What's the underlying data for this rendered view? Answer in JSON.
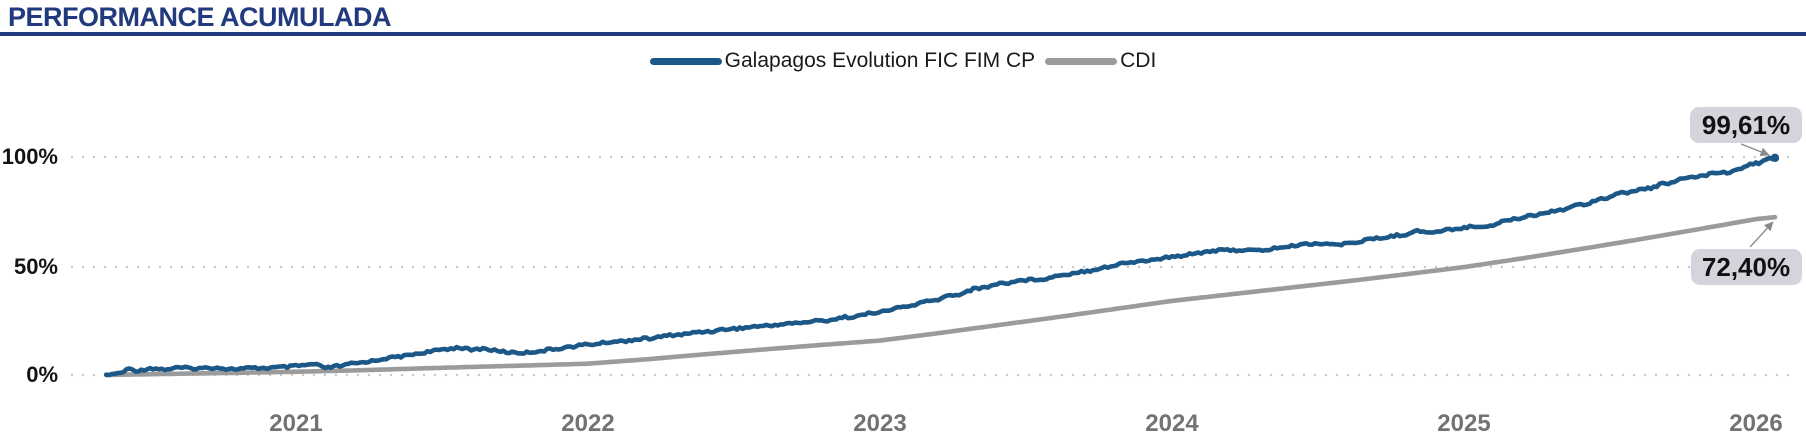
{
  "header": {
    "title": "PERFORMANCE ACUMULADA"
  },
  "colors": {
    "title_navy": "#21397d",
    "fund_blue": "#1b5787",
    "cdi_gray": "#9b9b9b",
    "grid_dot": "#c7c7c7",
    "y_label": "#141414",
    "year_label": "#737373",
    "callout_bg": "#d3d4dc",
    "callout_text": "#111111",
    "arrow_gray": "#8a8a8a"
  },
  "chart_data": {
    "type": "line",
    "title": "PERFORMANCE ACUMULADA",
    "xlabel": "",
    "ylabel": "",
    "legend_position": "top-center",
    "grid": "dotted-horizontal",
    "x_axis": {
      "tick_labels": [
        "2021",
        "2022",
        "2023",
        "2024",
        "2025",
        "2026"
      ],
      "tick_values": [
        2021,
        2022,
        2023,
        2024,
        2025,
        2026
      ],
      "range": [
        2020.3,
        2026.15
      ]
    },
    "y_axis": {
      "tick_labels": [
        "100%",
        "50%",
        "0%"
      ],
      "tick_values": [
        100,
        50,
        0
      ],
      "range": [
        0,
        105
      ],
      "unit": "%"
    },
    "series": [
      {
        "name": "Galapagos Evolution FIC FIM CP",
        "color": "#1b5787",
        "end_label": "99,61%",
        "end_value": 99.61,
        "points": [
          [
            2020.35,
            0
          ],
          [
            2020.4,
            1.0
          ],
          [
            2020.43,
            2.8
          ],
          [
            2020.46,
            1.9
          ],
          [
            2020.5,
            3.1
          ],
          [
            2020.55,
            2.6
          ],
          [
            2020.6,
            3.3
          ],
          [
            2020.66,
            3.0
          ],
          [
            2020.72,
            3.4
          ],
          [
            2020.78,
            2.7
          ],
          [
            2020.84,
            3.1
          ],
          [
            2020.9,
            3.2
          ],
          [
            2020.96,
            3.6
          ],
          [
            2021.02,
            4.3
          ],
          [
            2021.06,
            4.9
          ],
          [
            2021.1,
            3.3
          ],
          [
            2021.15,
            4.1
          ],
          [
            2021.2,
            5.3
          ],
          [
            2021.26,
            6.4
          ],
          [
            2021.31,
            7.7
          ],
          [
            2021.36,
            8.5
          ],
          [
            2021.41,
            9.7
          ],
          [
            2021.46,
            10.7
          ],
          [
            2021.51,
            11.9
          ],
          [
            2021.56,
            12.6
          ],
          [
            2021.6,
            11.5
          ],
          [
            2021.64,
            12.1
          ],
          [
            2021.69,
            11.1
          ],
          [
            2021.73,
            10.4
          ],
          [
            2021.78,
            10.2
          ],
          [
            2021.83,
            10.9
          ],
          [
            2021.88,
            11.8
          ],
          [
            2021.93,
            12.8
          ],
          [
            2022.0,
            14.0
          ],
          [
            2022.1,
            15.4
          ],
          [
            2022.2,
            16.7
          ],
          [
            2022.3,
            18.4
          ],
          [
            2022.4,
            19.9
          ],
          [
            2022.5,
            21.3
          ],
          [
            2022.6,
            22.5
          ],
          [
            2022.7,
            23.7
          ],
          [
            2022.8,
            24.9
          ],
          [
            2022.9,
            26.7
          ],
          [
            2023.0,
            28.9
          ],
          [
            2023.08,
            31.2
          ],
          [
            2023.17,
            33.8
          ],
          [
            2023.25,
            36.6
          ],
          [
            2023.34,
            39.8
          ],
          [
            2023.42,
            42.1
          ],
          [
            2023.5,
            43.6
          ],
          [
            2023.56,
            44.1
          ],
          [
            2023.63,
            46.1
          ],
          [
            2023.7,
            47.6
          ],
          [
            2023.78,
            49.6
          ],
          [
            2023.85,
            51.6
          ],
          [
            2023.92,
            52.6
          ],
          [
            2024.0,
            54.1
          ],
          [
            2024.08,
            55.9
          ],
          [
            2024.15,
            57.1
          ],
          [
            2024.22,
            57.3
          ],
          [
            2024.3,
            57.1
          ],
          [
            2024.38,
            58.6
          ],
          [
            2024.46,
            60.1
          ],
          [
            2024.52,
            60.4
          ],
          [
            2024.57,
            59.7
          ],
          [
            2024.63,
            61.1
          ],
          [
            2024.7,
            62.6
          ],
          [
            2024.78,
            64.1
          ],
          [
            2024.84,
            66.0
          ],
          [
            2024.9,
            65.5
          ],
          [
            2024.96,
            66.9
          ],
          [
            2025.02,
            67.9
          ],
          [
            2025.08,
            68.4
          ],
          [
            2025.16,
            71.3
          ],
          [
            2025.24,
            73.4
          ],
          [
            2025.32,
            75.6
          ],
          [
            2025.4,
            78.1
          ],
          [
            2025.48,
            81.2
          ],
          [
            2025.55,
            83.6
          ],
          [
            2025.62,
            85.4
          ],
          [
            2025.7,
            88.1
          ],
          [
            2025.76,
            90.1
          ],
          [
            2025.82,
            91.4
          ],
          [
            2025.86,
            93.1
          ],
          [
            2025.9,
            92.6
          ],
          [
            2025.95,
            95.1
          ],
          [
            2026.0,
            97.2
          ],
          [
            2026.065,
            99.61
          ]
        ]
      },
      {
        "name": "CDI",
        "color": "#9b9b9b",
        "end_label": "72,40%",
        "end_value": 72.4,
        "points": [
          [
            2020.35,
            0
          ],
          [
            2020.5,
            0.35
          ],
          [
            2020.65,
            0.7
          ],
          [
            2020.8,
            1.0
          ],
          [
            2021.0,
            1.5
          ],
          [
            2021.2,
            2.1
          ],
          [
            2021.4,
            2.9
          ],
          [
            2021.6,
            3.7
          ],
          [
            2021.8,
            4.4
          ],
          [
            2022.0,
            5.2
          ],
          [
            2022.2,
            7.2
          ],
          [
            2022.4,
            9.5
          ],
          [
            2022.6,
            11.7
          ],
          [
            2022.8,
            13.8
          ],
          [
            2023.0,
            15.8
          ],
          [
            2023.2,
            19.2
          ],
          [
            2023.4,
            22.8
          ],
          [
            2023.6,
            26.4
          ],
          [
            2023.8,
            30.2
          ],
          [
            2024.0,
            34.0
          ],
          [
            2024.2,
            37.0
          ],
          [
            2024.4,
            40.0
          ],
          [
            2024.6,
            43.0
          ],
          [
            2024.8,
            46.2
          ],
          [
            2025.0,
            49.5
          ],
          [
            2025.2,
            53.5
          ],
          [
            2025.4,
            57.8
          ],
          [
            2025.6,
            62.2
          ],
          [
            2025.8,
            66.8
          ],
          [
            2026.0,
            71.5
          ],
          [
            2026.065,
            72.4
          ]
        ]
      }
    ]
  }
}
